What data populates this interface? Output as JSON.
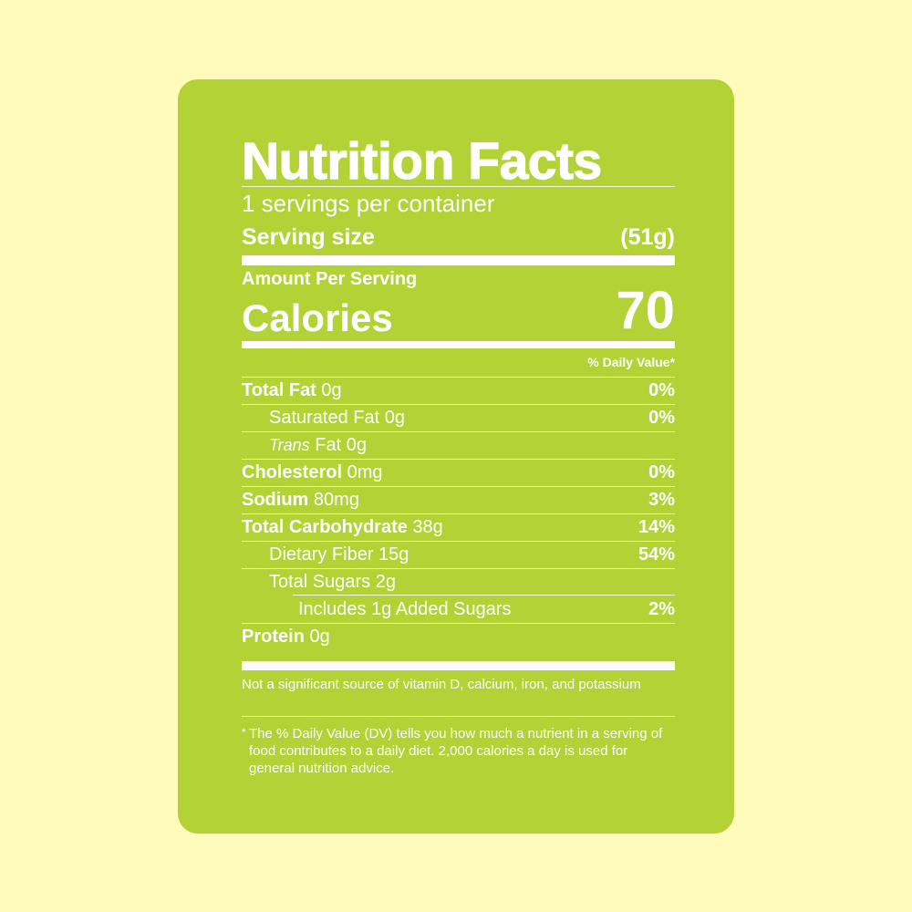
{
  "label": {
    "title": "Nutrition Facts",
    "servings_per_container": "1 servings per container",
    "serving_size_label": "Serving size",
    "serving_size_value": "(51g)",
    "amount_per_serving": "Amount Per Serving",
    "calories_label": "Calories",
    "calories_value": "70",
    "daily_value_header": "% Daily Value*",
    "nutrients": [
      {
        "name": "Total Fat",
        "amount": "0g",
        "dv": "0%"
      },
      {
        "name": "Saturated Fat",
        "amount": "0g",
        "dv": "0%"
      },
      {
        "name_italic": "Trans",
        "name": "Fat",
        "amount": "0g",
        "dv": ""
      },
      {
        "name": "Cholesterol",
        "amount": "0mg",
        "dv": "0%"
      },
      {
        "name": "Sodium",
        "amount": "80mg",
        "dv": "3%"
      },
      {
        "name": "Total Carbohydrate",
        "amount": "38g",
        "dv": "14%"
      },
      {
        "name": "Dietary Fiber",
        "amount": "15g",
        "dv": "54%"
      },
      {
        "name": "Total Sugars",
        "amount": "2g",
        "dv": ""
      },
      {
        "name": "Includes 1g Added Sugars",
        "amount": "",
        "dv": "2%"
      },
      {
        "name": "Protein",
        "amount": "0g",
        "dv": ""
      }
    ],
    "vitamin_note": "Not a significant source of vitamin D, calcium, iron, and potassium",
    "footnote_star": "*",
    "footnote": "The % Daily Value (DV) tells you how much a nutrient in a serving of food contributes to a daily diet. 2,000 calories a day is used for general nutrition advice."
  },
  "colors": {
    "background": "#FFFCBB",
    "label_fill": "#B2D235",
    "text": "#FFFFFF"
  }
}
